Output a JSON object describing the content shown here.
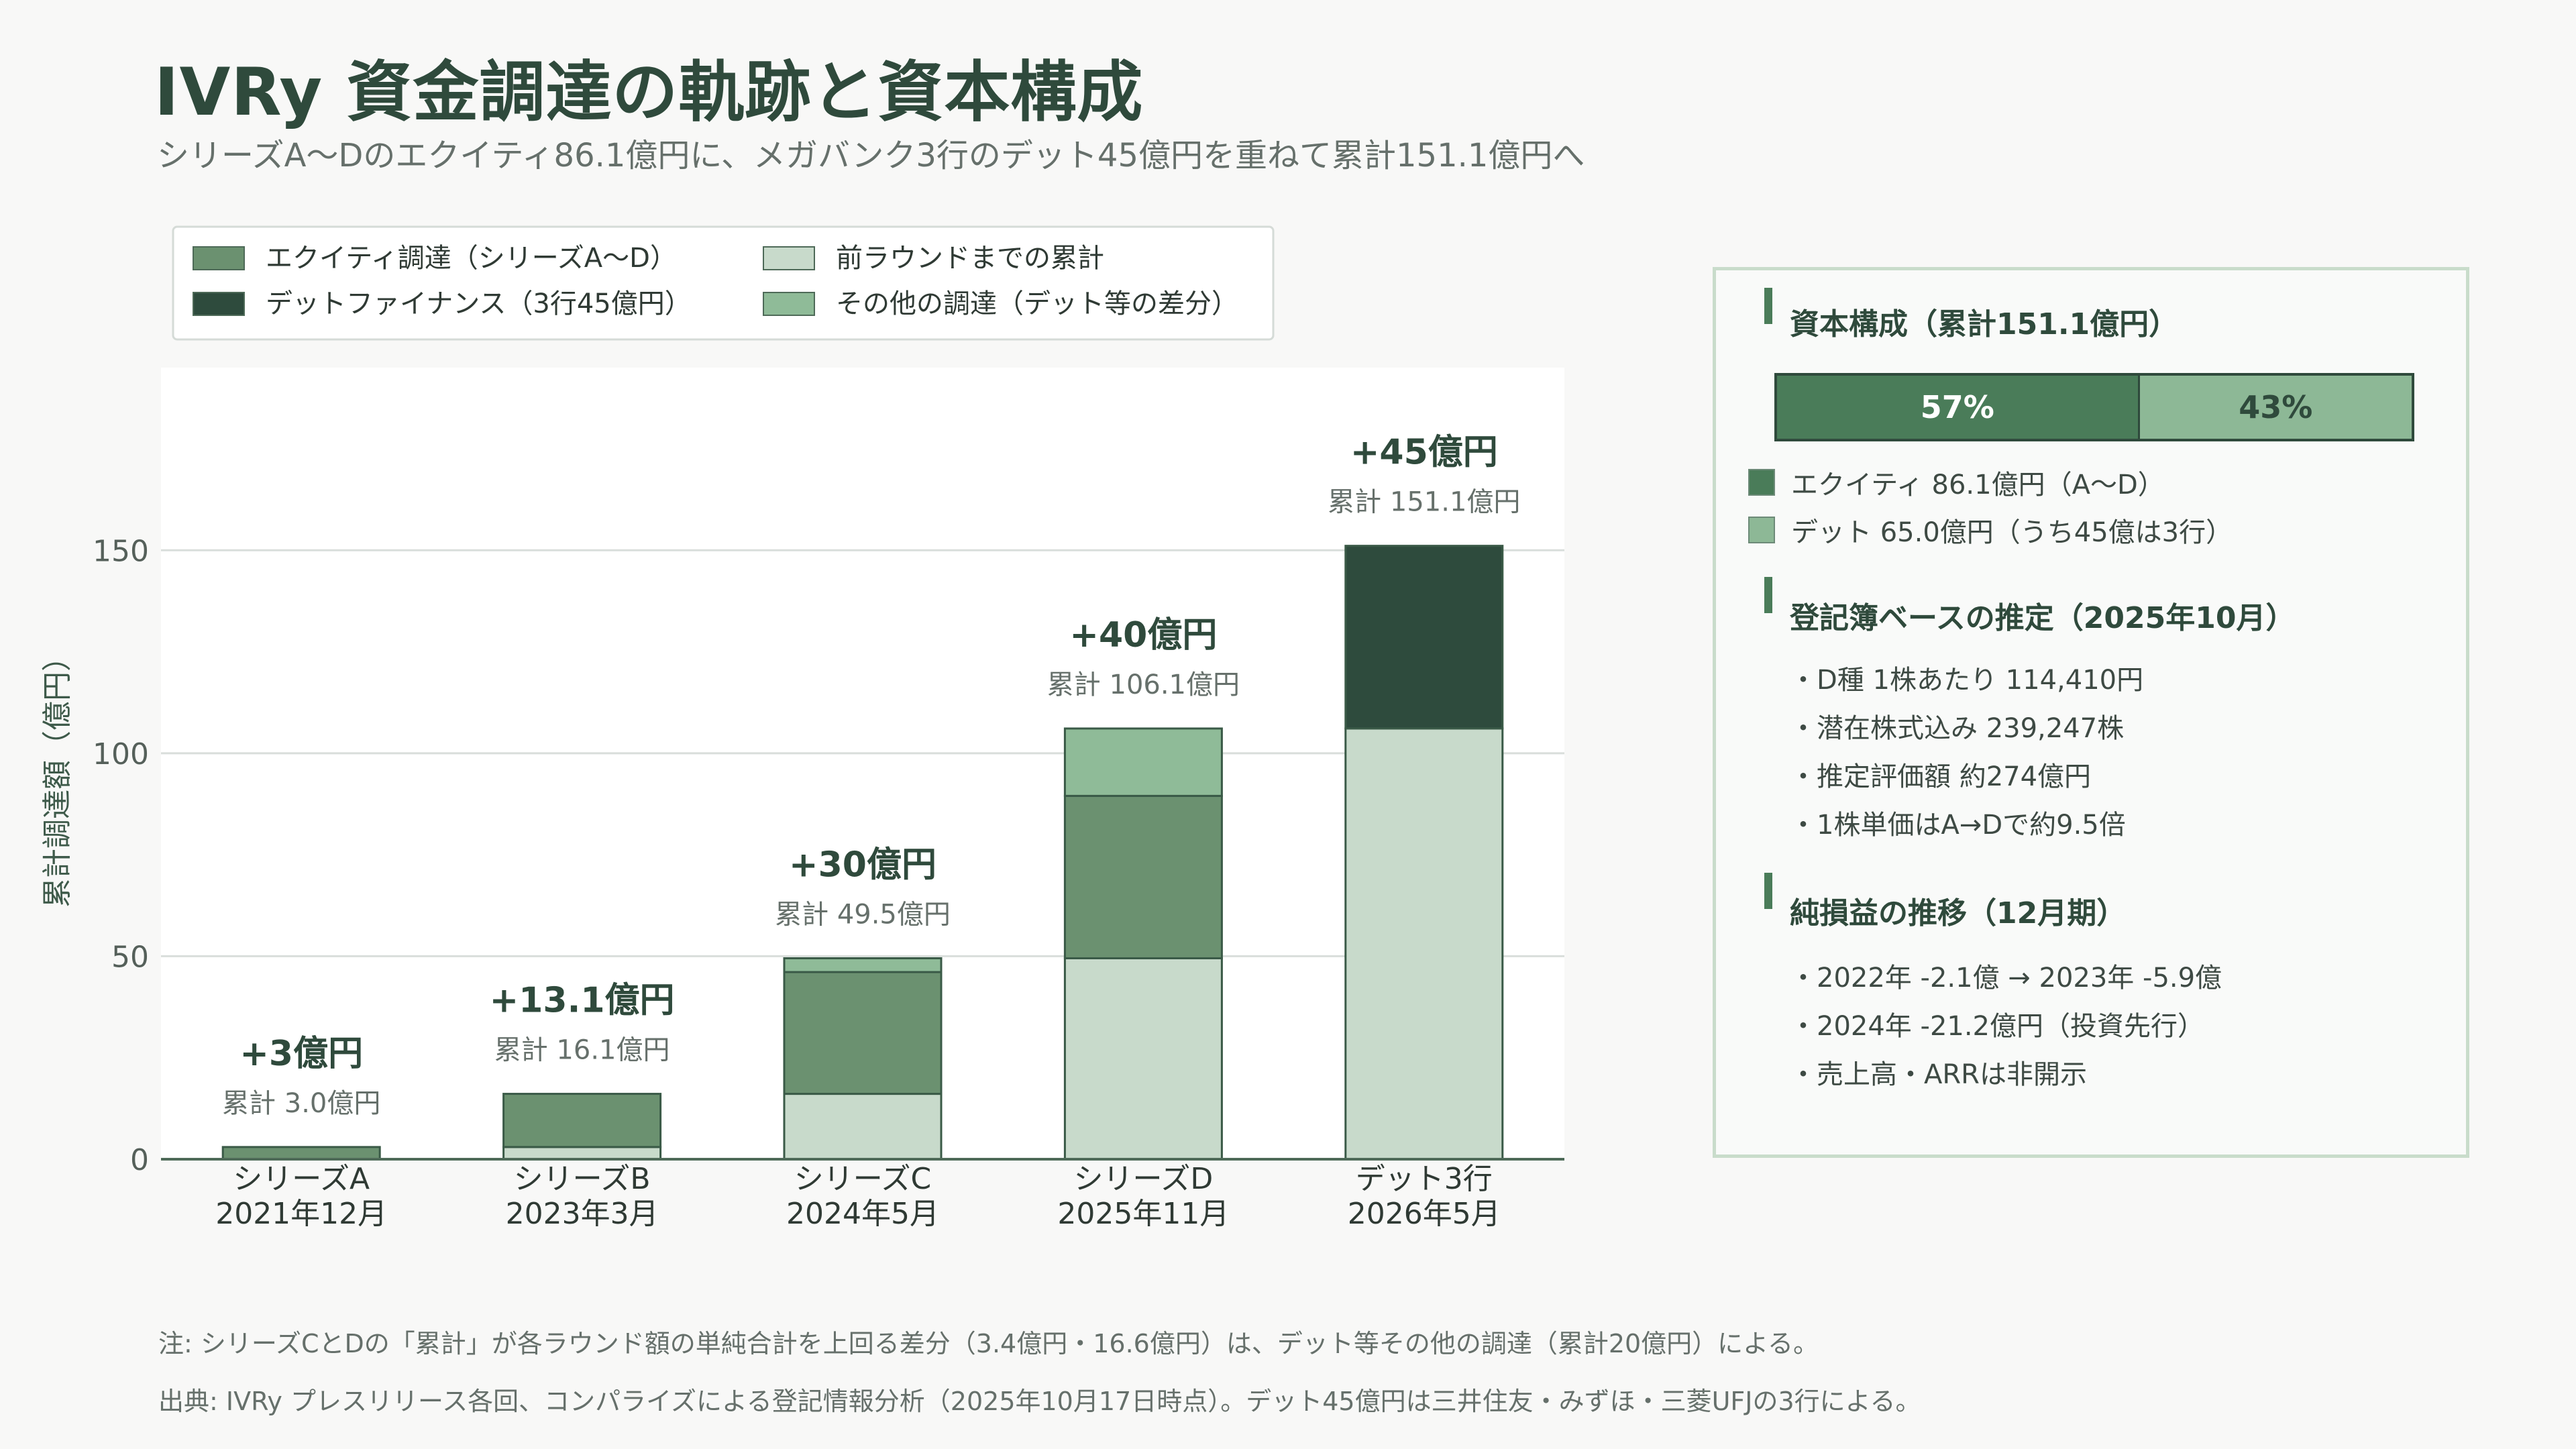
{
  "title": "IVRy 資金調達の軌跡と資本構成",
  "subtitle": "シリーズA〜Dのエクイティ86.1億円に、メガバンク3行のデット45億円を重ねて累計151.1億円へ",
  "colors": {
    "equity": "#6b9170",
    "debt_finance": "#2e4b3d",
    "previous_cumulative": "#c8dacb",
    "other": "#8fbb98",
    "panel_equity": "#4a7c59",
    "panel_debt": "#8db896"
  },
  "chart_data": {
    "type": "bar",
    "stacked": true,
    "ylabel": "累計調達額（億円）",
    "ylim": [
      0,
      195
    ],
    "yticks": [
      0,
      50,
      100,
      150
    ],
    "grid": true,
    "legend_position": "top-left",
    "categories": [
      {
        "line1": "シリーズA",
        "line2": "2021年12月"
      },
      {
        "line1": "シリーズB",
        "line2": "2023年3月"
      },
      {
        "line1": "シリーズC",
        "line2": "2024年5月"
      },
      {
        "line1": "シリーズD",
        "line2": "2025年11月"
      },
      {
        "line1": "デット3行",
        "line2": "2026年5月"
      }
    ],
    "legend": [
      {
        "label": "エクイティ調達（シリーズA〜D）",
        "color": "#6b9170"
      },
      {
        "label": "前ラウンドまでの累計",
        "color": "#c8dacb"
      },
      {
        "label": "デットファイナンス（3行45億円）",
        "color": "#2e4b3d"
      },
      {
        "label": "その他の調達（デット等の差分）",
        "color": "#8fbb98"
      }
    ],
    "series": [
      {
        "name": "前ラウンドまでの累計",
        "values": [
          0,
          3.0,
          16.1,
          49.5,
          106.1
        ],
        "color": "#c8dacb"
      },
      {
        "name": "エクイティ調達（シリーズA〜D）",
        "values": [
          3.0,
          13.1,
          30.0,
          40.0,
          0
        ],
        "color": "#6b9170"
      },
      {
        "name": "デットファイナンス（3行45億円）",
        "values": [
          0,
          0,
          0,
          0,
          45.0
        ],
        "color": "#2e4b3d"
      },
      {
        "name": "その他の調達（デット等の差分）",
        "values": [
          0,
          0,
          3.4,
          16.6,
          0
        ],
        "color": "#8fbb98"
      }
    ],
    "annotations": [
      {
        "delta": "+3億円",
        "cumulative": "累計 3.0億円",
        "total": 3.0
      },
      {
        "delta": "+13.1億円",
        "cumulative": "累計 16.1億円",
        "total": 16.1
      },
      {
        "delta": "+30億円",
        "cumulative": "累計 49.5億円",
        "total": 49.5
      },
      {
        "delta": "+40億円",
        "cumulative": "累計 106.1億円",
        "total": 106.1
      },
      {
        "delta": "+45億円",
        "cumulative": "累計 151.1億円",
        "total": 151.1
      }
    ]
  },
  "panel": {
    "capital": {
      "title": "資本構成（累計151.1億円）",
      "equity_pct_label": "57%",
      "debt_pct_label": "43%",
      "equity_fraction": 0.57,
      "debt_fraction": 0.43,
      "equity_label": "エクイティ 86.1億円（A〜D）",
      "debt_label": "デット 65.0億円（うち45億は3行）"
    },
    "registry": {
      "title": "登記簿ベースの推定（2025年10月）",
      "items": [
        "・D種 1株あたり 114,410円",
        "・潜在株式込み 239,247株",
        "・推定評価額 約274億円",
        "・1株単価はA→Dで約9.5倍"
      ]
    },
    "pnl": {
      "title": "純損益の推移（12月期）",
      "items": [
        "・2022年 -2.1億 → 2023年 -5.9億",
        "・2024年 -21.2億円（投資先行）",
        "・売上高・ARRは非開示"
      ]
    }
  },
  "notes": {
    "note": "注: シリーズCとDの「累計」が各ラウンド額の単純合計を上回る差分（3.4億円・16.6億円）は、デット等その他の調達（累計20億円）による。",
    "source": "出典: IVRy プレスリリース各回、コンパライズによる登記情報分析（2025年10月17日時点）。デット45億円は三井住友・みずほ・三菱UFJの3行による。"
  }
}
